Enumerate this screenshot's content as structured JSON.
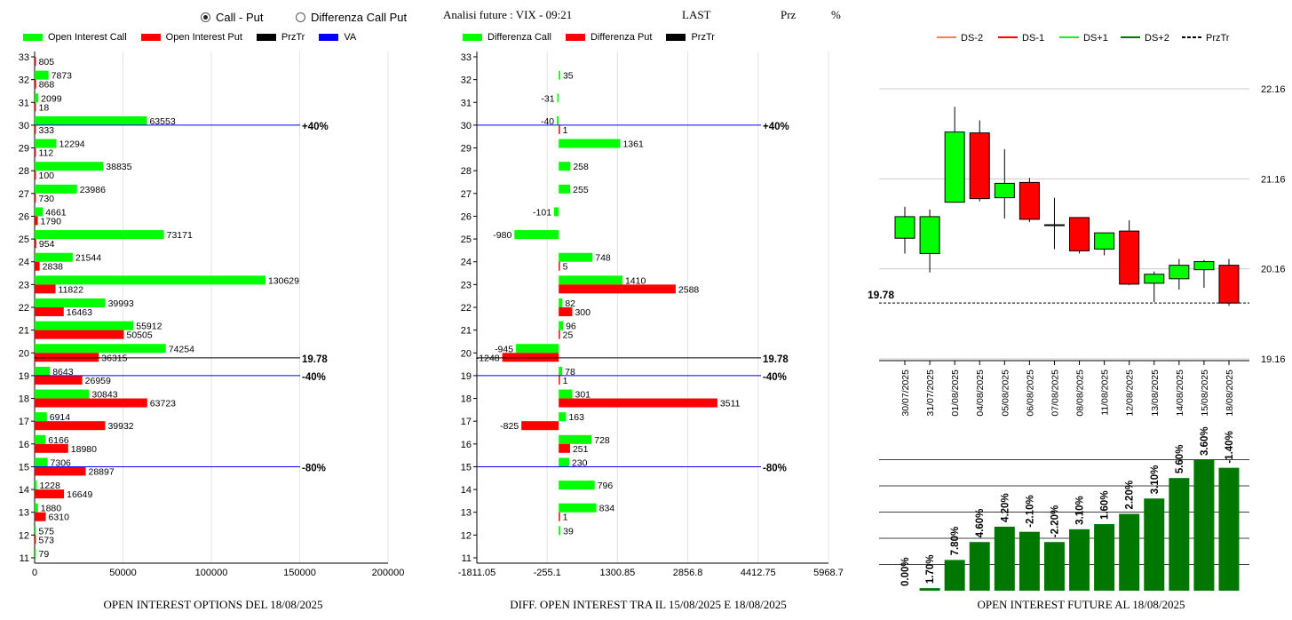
{
  "header": {
    "radio_call_put": "Call - Put",
    "radio_diff": "Differenza Call Put",
    "title": "Analisi future : VIX - 09:21",
    "last": "LAST",
    "prz": "Prz",
    "pct": "%"
  },
  "legend_oi": [
    {
      "label": "Open Interest Call",
      "color": "#00ff00"
    },
    {
      "label": "Open Interest Put",
      "color": "#ff0000"
    },
    {
      "label": "PrzTr",
      "color": "#000000"
    },
    {
      "label": "VA",
      "color": "#0000ff"
    }
  ],
  "legend_diff": [
    {
      "label": "Differenza Call",
      "color": "#00ff00"
    },
    {
      "label": "Differenza Put",
      "color": "#ff0000"
    },
    {
      "label": "PrzTr",
      "color": "#000000"
    }
  ],
  "legend_candle": [
    {
      "label": "DS-2",
      "color": "#f08060",
      "style": "solid"
    },
    {
      "label": "DS-1",
      "color": "#ff0000",
      "style": "solid"
    },
    {
      "label": "DS+1",
      "color": "#33dd33",
      "style": "solid"
    },
    {
      "label": "DS+2",
      "color": "#007700",
      "style": "solid"
    },
    {
      "label": "PrzTr",
      "color": "#000000",
      "style": "dashed"
    }
  ],
  "footers": {
    "oi": "OPEN INTEREST OPTIONS DEL 18/08/2025",
    "diff": "DIFF. OPEN INTEREST TRA IL 15/08/2025 E 18/08/2025",
    "future": "OPEN INTEREST FUTURE AL 18/08/2025"
  },
  "chart_data": [
    {
      "type": "bar",
      "title": "OPEN INTEREST OPTIONS DEL 18/08/2025",
      "orientation": "horizontal",
      "categories": [
        11,
        12,
        13,
        14,
        15,
        16,
        17,
        18,
        19,
        20,
        21,
        22,
        23,
        24,
        25,
        26,
        27,
        28,
        29,
        30,
        31,
        32,
        33
      ],
      "series": [
        {
          "name": "Open Interest Call",
          "color": "#00ff00",
          "values": [
            79,
            575,
            1880,
            1228,
            7306,
            6166,
            6914,
            30843,
            8643,
            74254,
            55912,
            39993,
            130629,
            21544,
            73171,
            4661,
            23986,
            38835,
            12294,
            63553,
            2099,
            7873,
            null
          ]
        },
        {
          "name": "Open Interest Put",
          "color": "#ff0000",
          "values": [
            null,
            573,
            6310,
            16649,
            28897,
            18980,
            39932,
            63723,
            26959,
            36315,
            50505,
            16463,
            11822,
            2838,
            954,
            1790,
            730,
            100,
            112,
            333,
            18,
            868,
            805
          ]
        }
      ],
      "xticks": [
        0,
        50000,
        100000,
        150000,
        200000
      ],
      "xlim": [
        0,
        200000
      ],
      "ref_lines": [
        {
          "label": "+40%",
          "strike": 30,
          "color": "#0000ff"
        },
        {
          "label": "19.78",
          "strike": 19.78,
          "color": "#000000"
        },
        {
          "label": "-40%",
          "strike": 19,
          "color": "#0000ff"
        },
        {
          "label": "-80%",
          "strike": 15,
          "color": "#0000ff"
        }
      ]
    },
    {
      "type": "bar",
      "title": "DIFF. OPEN INTEREST TRA IL 15/08/2025 E 18/08/2025",
      "orientation": "horizontal",
      "categories": [
        11,
        12,
        13,
        14,
        15,
        16,
        17,
        18,
        19,
        20,
        21,
        22,
        23,
        24,
        25,
        26,
        27,
        28,
        29,
        30,
        31,
        32,
        33
      ],
      "series": [
        {
          "name": "Differenza Call",
          "color": "#00ff00",
          "values": [
            null,
            39,
            834,
            796,
            230,
            728,
            163,
            301,
            78,
            -945,
            96,
            82,
            1410,
            748,
            -980,
            -101,
            255,
            258,
            1361,
            -40,
            -31,
            35,
            null
          ]
        },
        {
          "name": "Differenza Put",
          "color": "#ff0000",
          "values": [
            null,
            null,
            1,
            null,
            null,
            251,
            -825,
            3511,
            1,
            -1248,
            25,
            300,
            2588,
            5,
            null,
            null,
            null,
            null,
            null,
            1,
            null,
            null,
            null
          ]
        }
      ],
      "xticks": [
        -1811.05,
        -255.1,
        1300.85,
        2856.8,
        4412.75,
        5968.7
      ],
      "xtick_labels": [
        "-1811.05",
        "-255.1",
        "1300.85",
        "2856.8",
        "4412.75",
        "5968.7"
      ],
      "xlim": [
        -1811.05,
        5968.7
      ],
      "ref_lines": [
        {
          "label": "+40%",
          "strike": 30,
          "color": "#0000ff"
        },
        {
          "label": "19.78",
          "strike": 19.78,
          "color": "#000000"
        },
        {
          "label": "-40%",
          "strike": 19,
          "color": "#0000ff"
        },
        {
          "label": "-80%",
          "strike": 15,
          "color": "#0000ff"
        }
      ]
    },
    {
      "type": "candlestick",
      "dates": [
        "30/07/2025",
        "31/07/2025",
        "01/08/2025",
        "04/08/2025",
        "05/08/2025",
        "06/08/2025",
        "07/08/2025",
        "08/08/2025",
        "11/08/2025",
        "12/08/2025",
        "13/08/2025",
        "14/08/2025",
        "15/08/2025",
        "18/08/2025"
      ],
      "ohlc": [
        {
          "o": 20.5,
          "h": 20.85,
          "l": 20.33,
          "c": 20.74
        },
        {
          "o": 20.33,
          "h": 20.82,
          "l": 20.12,
          "c": 20.74
        },
        {
          "o": 20.9,
          "h": 21.96,
          "l": 20.9,
          "c": 21.68
        },
        {
          "o": 21.67,
          "h": 21.81,
          "l": 20.91,
          "c": 20.94
        },
        {
          "o": 20.95,
          "h": 21.49,
          "l": 20.72,
          "c": 21.11
        },
        {
          "o": 21.12,
          "h": 21.17,
          "l": 20.68,
          "c": 20.71
        },
        {
          "o": 20.65,
          "h": 20.95,
          "l": 20.38,
          "c": 20.65
        },
        {
          "o": 20.73,
          "h": 20.73,
          "l": 20.33,
          "c": 20.36
        },
        {
          "o": 20.38,
          "h": 20.56,
          "l": 20.31,
          "c": 20.56
        },
        {
          "o": 20.58,
          "h": 20.7,
          "l": 19.98,
          "c": 19.99
        },
        {
          "o": 20.0,
          "h": 20.13,
          "l": 19.79,
          "c": 20.1
        },
        {
          "o": 20.05,
          "h": 20.27,
          "l": 19.93,
          "c": 20.2
        },
        {
          "o": 20.15,
          "h": 20.26,
          "l": 19.95,
          "c": 20.24
        },
        {
          "o": 20.2,
          "h": 20.27,
          "l": 19.75,
          "c": 19.78
        }
      ],
      "yticks": [
        19.16,
        20.16,
        21.16,
        22.16
      ],
      "ylim": [
        19.16,
        22.16
      ],
      "przTr": 19.78,
      "przTr_label": "19.78"
    },
    {
      "type": "bar",
      "title": "OPEN INTEREST FUTURE AL 18/08/2025",
      "values": [
        0,
        1,
        12,
        19,
        25,
        23,
        19,
        24,
        26,
        30,
        36,
        44,
        51,
        48
      ],
      "value_unit": "relative",
      "labels": [
        "0.00%",
        "1.70%",
        "7.80%",
        "4.60%",
        "4.20%",
        "-2.10%",
        "-2.20%",
        "3.10%",
        "1.60%",
        "2.20%",
        "3.10%",
        "5.60%",
        "3.60%",
        "-1.40%"
      ],
      "color": "#007700"
    }
  ]
}
